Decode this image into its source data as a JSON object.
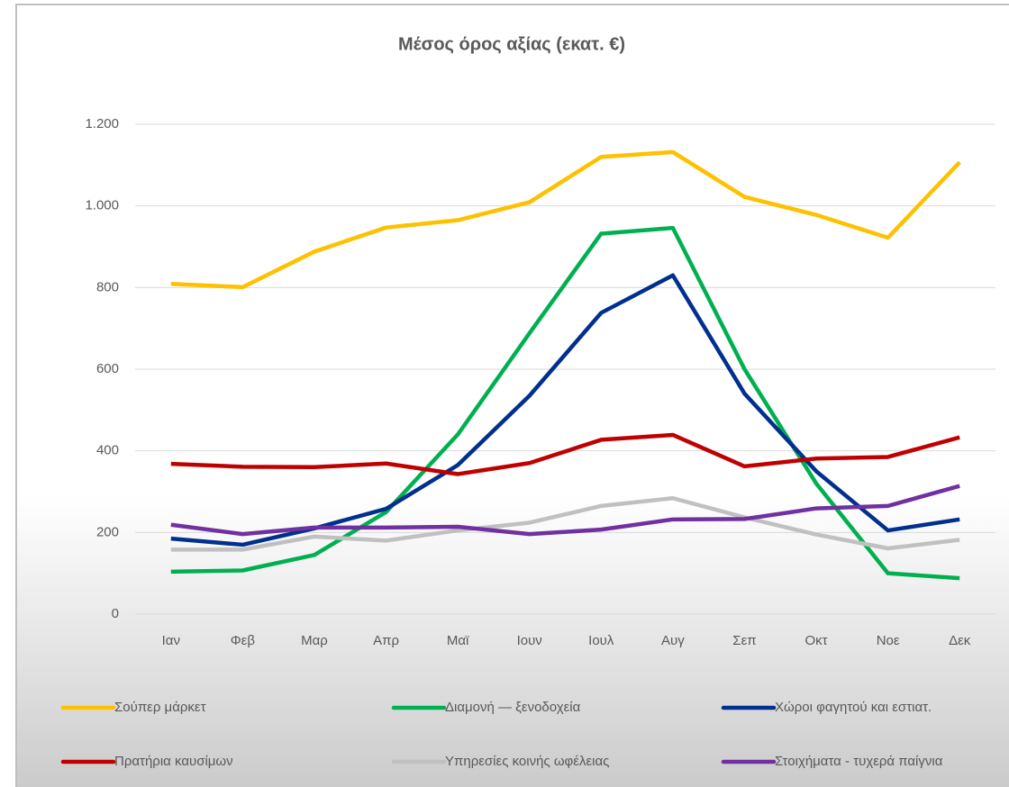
{
  "chart_data": {
    "type": "line",
    "title": "Μέσος όρος αξίας (εκατ. €)",
    "categories": [
      "Ιαν",
      "Φεβ",
      "Μαρ",
      "Απρ",
      "Μαϊ",
      "Ιουν",
      "Ιουλ",
      "Αυγ",
      "Σεπ",
      "Οκτ",
      "Νοε",
      "Δεκ"
    ],
    "series": [
      {
        "name": "Σούπερ μάρκετ",
        "color": "#ffc000",
        "values": [
          809,
          801,
          888,
          947,
          965,
          1009,
          1120,
          1132,
          1022,
          978,
          922,
          1107
        ]
      },
      {
        "name": "Διαμονή — ξενοδοχεία",
        "color": "#00b050",
        "values": [
          104,
          107,
          145,
          250,
          440,
          688,
          932,
          946,
          600,
          320,
          100,
          88
        ]
      },
      {
        "name": "Χώροι φαγητού και εστιατ.",
        "color": "#002f8e",
        "values": [
          185,
          170,
          210,
          258,
          365,
          535,
          738,
          830,
          540,
          350,
          205,
          232
        ]
      },
      {
        "name": "Πρατήρια καυσίμων",
        "color": "#c00000",
        "values": [
          368,
          361,
          360,
          369,
          343,
          370,
          427,
          439,
          362,
          381,
          385,
          433
        ]
      },
      {
        "name": "Υπηρεσίες κοινής ωφέλειας",
        "color": "#c0c0c0",
        "values": [
          158,
          158,
          190,
          180,
          205,
          224,
          265,
          284,
          237,
          195,
          161,
          182
        ]
      },
      {
        "name": "Στοιχήματα - τυχερά παίγνια",
        "color": "#7030a0",
        "values": [
          219,
          196,
          212,
          212,
          214,
          196,
          207,
          232,
          233,
          259,
          265,
          314
        ]
      }
    ],
    "ylim": [
      0,
      1200
    ],
    "yticks": [
      0,
      200,
      400,
      600,
      800,
      {
        "value": 1000,
        "label": "1.000"
      },
      {
        "value": 1200,
        "label": "1.200"
      }
    ],
    "grid": true,
    "legend": "bottom"
  }
}
